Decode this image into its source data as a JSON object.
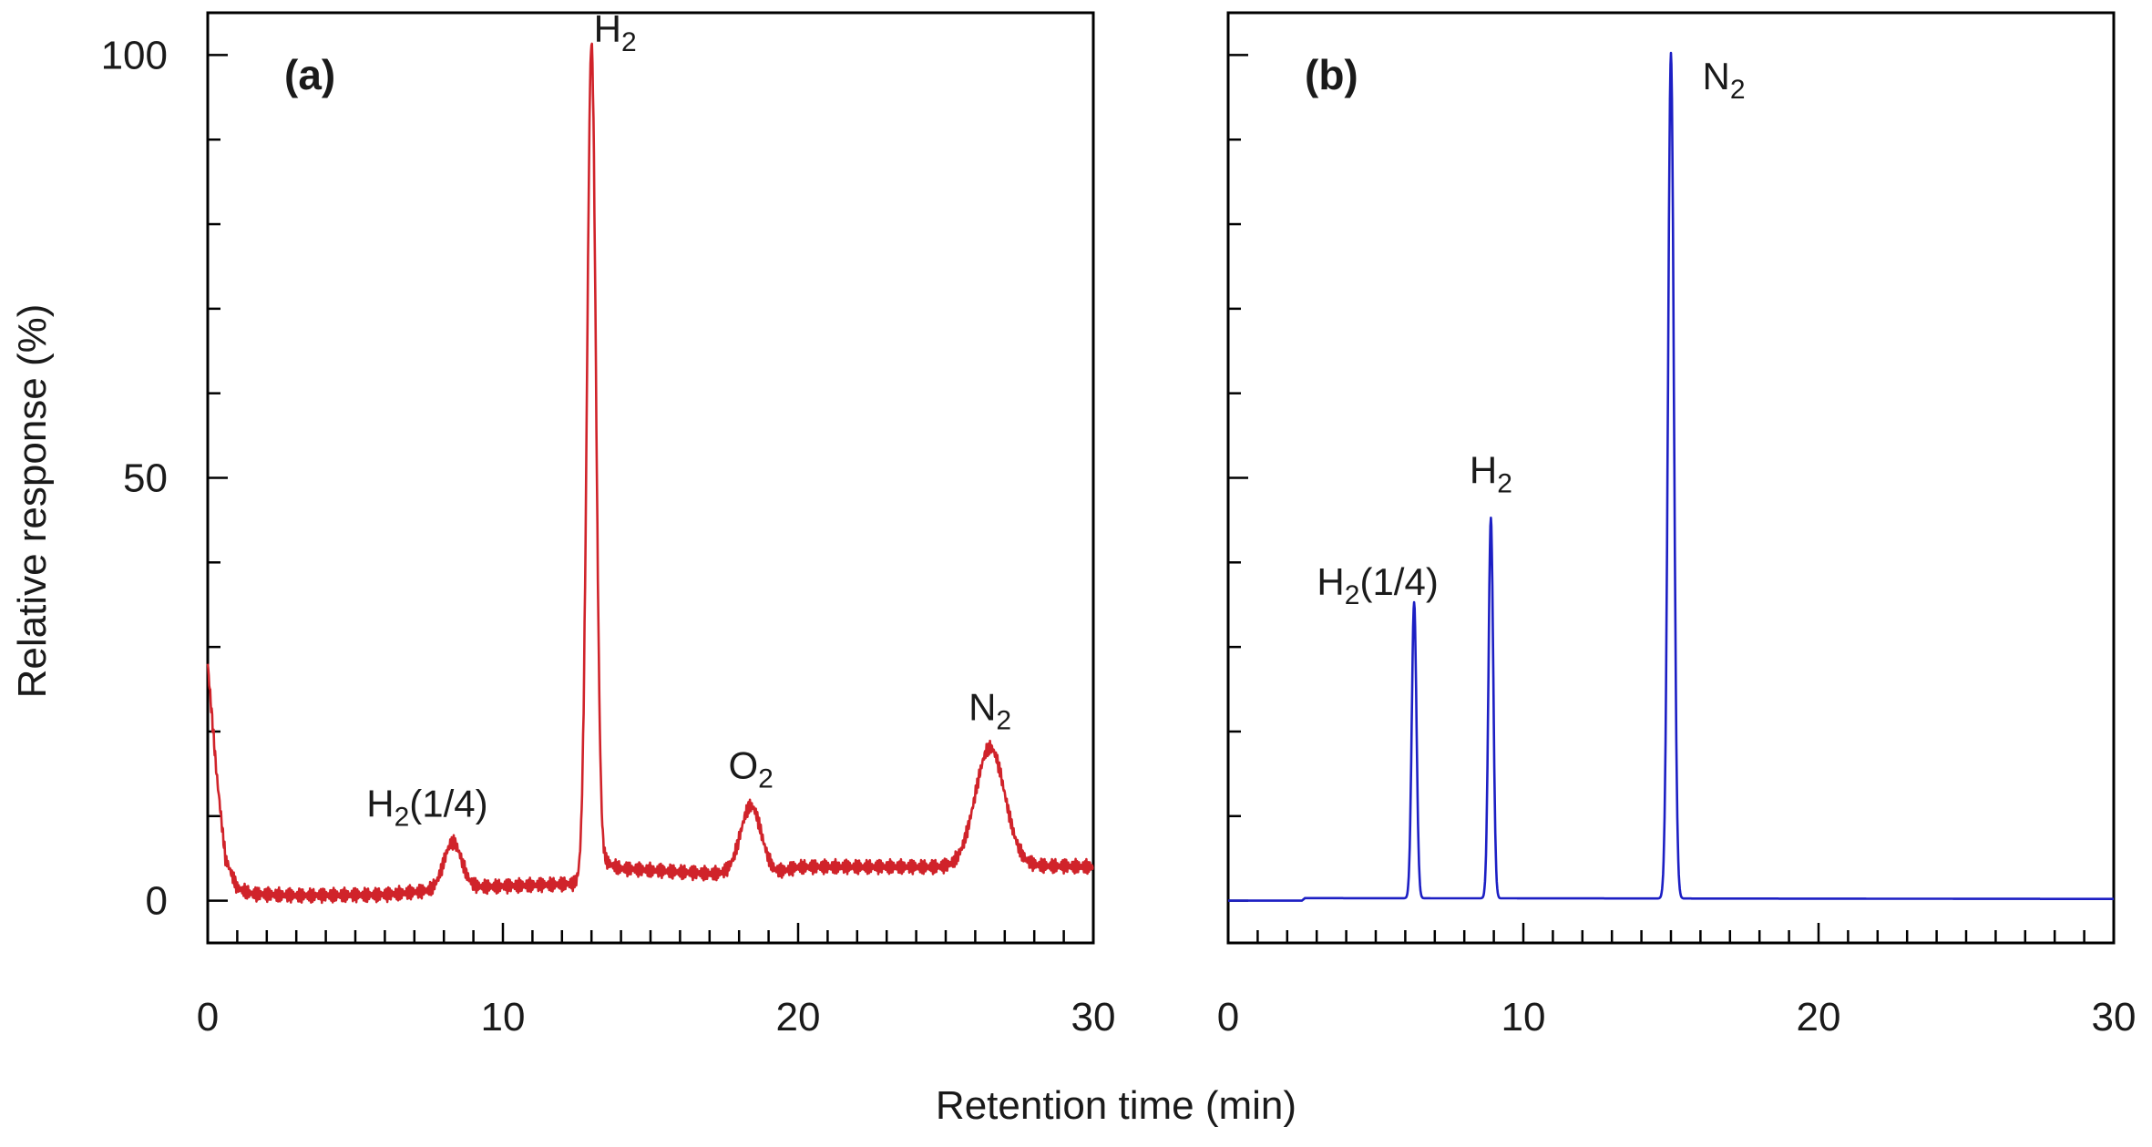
{
  "colors": {
    "panel_a_trace": "#d0232a",
    "panel_b_trace": "#1c1fc4",
    "axis": "#000000"
  },
  "figure": {
    "ylabel": "Relative response (%)",
    "xlabel": "Retention time (min)"
  },
  "chart_data": [
    {
      "type": "line",
      "panel_label": "(a)",
      "xlim": [
        0,
        30
      ],
      "ylim": [
        -5,
        105
      ],
      "x_ticks": [
        0,
        10,
        20,
        30
      ],
      "x_tick_labels": [
        "0",
        "10",
        "20",
        "30"
      ],
      "y_ticks": [
        0,
        50,
        100
      ],
      "y_tick_labels": [
        "0",
        "50",
        "100"
      ],
      "grid": false,
      "series": [
        {
          "color": "#d0232a",
          "baseline": [
            [
              0,
              28
            ],
            [
              0.3,
              15
            ],
            [
              0.6,
              5
            ],
            [
              1.0,
              1.5
            ],
            [
              1.5,
              0.8
            ],
            [
              3,
              0.6
            ],
            [
              6,
              0.7
            ],
            [
              7.6,
              1.2
            ],
            [
              9,
              1.6
            ],
            [
              12.4,
              2.0
            ],
            [
              13.5,
              4.5
            ],
            [
              14,
              3.8
            ],
            [
              17,
              3.2
            ],
            [
              19.2,
              3.2
            ],
            [
              20,
              4.0
            ],
            [
              25.5,
              4.0
            ],
            [
              27.5,
              4.2
            ],
            [
              30,
              4.0
            ]
          ],
          "peaks": [
            {
              "center": 8.3,
              "height": 5.5,
              "width": 0.3,
              "label_main": "H",
              "label_sub": "2",
              "label_tail": "(1/4)"
            },
            {
              "center": 13.0,
              "height": 98,
              "width": 0.15,
              "label_main": "H",
              "label_sub": "2",
              "label_tail": ""
            },
            {
              "center": 18.4,
              "height": 8,
              "width": 0.35,
              "label_main": "O",
              "label_sub": "2",
              "label_tail": ""
            },
            {
              "center": 26.5,
              "height": 14,
              "width": 0.5,
              "label_main": "N",
              "label_sub": "2",
              "label_tail": ""
            }
          ]
        }
      ]
    },
    {
      "type": "line",
      "panel_label": "(b)",
      "xlim": [
        0,
        30
      ],
      "ylim": [
        -5,
        105
      ],
      "x_ticks": [
        0,
        10,
        20,
        30
      ],
      "x_tick_labels": [
        "0",
        "10",
        "20",
        "30"
      ],
      "y_ticks": [
        0,
        50,
        100
      ],
      "y_tick_labels": [],
      "grid": false,
      "series": [
        {
          "color": "#1c1fc4",
          "baseline": [
            [
              0,
              0
            ],
            [
              2.5,
              0
            ],
            [
              2.6,
              0.3
            ],
            [
              30,
              0.2
            ]
          ],
          "peaks": [
            {
              "center": 6.3,
              "height": 35,
              "width": 0.08,
              "label_main": "H",
              "label_sub": "2",
              "label_tail": "(1/4)"
            },
            {
              "center": 8.9,
              "height": 45,
              "width": 0.08,
              "label_main": "H",
              "label_sub": "2",
              "label_tail": ""
            },
            {
              "center": 15.0,
              "height": 100,
              "width": 0.1,
              "label_main": "N",
              "label_sub": "2",
              "label_tail": ""
            }
          ]
        }
      ]
    }
  ]
}
